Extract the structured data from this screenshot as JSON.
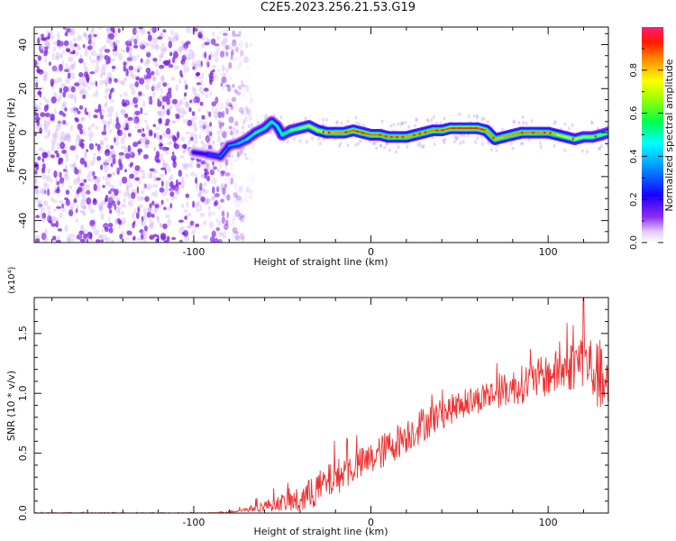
{
  "title": "C2E5.2023.256.21.53.G19",
  "colors": {
    "axis": "#111111",
    "scatter_dots": "#7a1fe6",
    "scatter_light": "#c9a3f5",
    "snr_line": "#ee3333"
  },
  "chart_data": [
    {
      "type": "heatmap",
      "title": "C2E5.2023.256.21.53.G19",
      "xlabel": "Height of straight line (km)",
      "ylabel": "Frequency (Hz)",
      "xlim": [
        -190,
        134
      ],
      "ylim": [
        -50,
        48
      ],
      "xticks": [
        -100,
        0,
        100
      ],
      "xtick_labels": [
        "-100",
        "0",
        "100"
      ],
      "yticks": [
        -40,
        -20,
        0,
        20,
        40
      ],
      "ytick_labels": [
        "-40",
        "-20",
        "0",
        "20",
        "40"
      ],
      "colorbar": {
        "label": "Normalized spectral amplitude",
        "range": [
          0,
          1
        ],
        "ticks": [
          0.0,
          0.2,
          0.4,
          0.6,
          0.8
        ],
        "tick_labels": [
          "0.0",
          "0.2",
          "0.4",
          "0.6",
          "0.8"
        ],
        "colormap": "rainbow"
      },
      "noise_region_x": [
        -190,
        -77
      ],
      "ridge": {
        "x": [
          -100,
          -92,
          -85,
          -80,
          -75,
          -70,
          -65,
          -60,
          -56,
          -53,
          -50,
          -45,
          -40,
          -35,
          -30,
          -25,
          -20,
          -15,
          -10,
          -5,
          0,
          5,
          10,
          15,
          20,
          25,
          30,
          35,
          40,
          45,
          50,
          55,
          60,
          65,
          70,
          75,
          80,
          85,
          90,
          95,
          100,
          105,
          110,
          115,
          120,
          125,
          130,
          134
        ],
        "y": [
          -9,
          -10,
          -11,
          -6,
          -5,
          -3,
          0,
          2,
          5,
          3,
          -1,
          1,
          2,
          3,
          1,
          0,
          0,
          0,
          1,
          0,
          -1,
          -1,
          -2,
          -2,
          -2,
          -1,
          0,
          1,
          1,
          2,
          2,
          2,
          2,
          1,
          -3,
          -2,
          -1,
          0,
          0,
          0,
          0,
          -1,
          -2,
          -3,
          -2,
          -2,
          -1,
          0
        ],
        "amplitude": [
          0.2,
          0.25,
          0.3,
          0.35,
          0.4,
          0.45,
          0.5,
          0.55,
          0.5,
          0.45,
          0.55,
          0.6,
          0.65,
          0.7,
          0.75,
          0.8,
          0.85,
          0.85,
          0.9,
          0.9,
          0.88,
          0.87,
          0.86,
          0.85,
          0.84,
          0.84,
          0.85,
          0.86,
          0.88,
          0.9,
          0.92,
          0.93,
          0.92,
          0.88,
          0.8,
          0.82,
          0.85,
          0.86,
          0.87,
          0.86,
          0.84,
          0.8,
          0.75,
          0.7,
          0.68,
          0.66,
          0.64,
          0.62
        ]
      }
    },
    {
      "type": "line",
      "xlabel": "Height of straight line (km)",
      "ylabel": "SNR (10 * v/v)",
      "multiplier_label": "(x10⁴)",
      "xlim": [
        -190,
        134
      ],
      "ylim": [
        0,
        1.8
      ],
      "xticks": [
        -100,
        0,
        100
      ],
      "xtick_labels": [
        "-100",
        "0",
        "100"
      ],
      "yticks": [
        0.0,
        0.5,
        1.0,
        1.5
      ],
      "ytick_labels": [
        "0.0",
        "0.5",
        "1.0",
        "1.5"
      ],
      "series": [
        {
          "x": [
            -190,
            -170,
            -150,
            -130,
            -110,
            -90,
            -80,
            -70,
            -60,
            -50,
            -40,
            -30,
            -20,
            -10,
            0,
            10,
            20,
            30,
            40,
            50,
            60,
            70,
            80,
            90,
            100,
            110,
            120,
            125,
            130,
            134
          ],
          "y": [
            0.0,
            0.0,
            0.0,
            0.0,
            0.0,
            0.0,
            0.01,
            0.03,
            0.06,
            0.09,
            0.1,
            0.2,
            0.3,
            0.38,
            0.45,
            0.55,
            0.65,
            0.75,
            0.83,
            0.9,
            0.95,
            1.0,
            1.05,
            1.1,
            1.15,
            1.2,
            1.3,
            1.2,
            1.1,
            1.0
          ],
          "noise": [
            0.004,
            0.004,
            0.004,
            0.004,
            0.004,
            0.004,
            0.01,
            0.02,
            0.05,
            0.07,
            0.12,
            0.15,
            0.15,
            0.14,
            0.14,
            0.15,
            0.15,
            0.15,
            0.13,
            0.12,
            0.12,
            0.13,
            0.15,
            0.17,
            0.18,
            0.2,
            0.25,
            0.28,
            0.28,
            0.25
          ],
          "peak": {
            "x": 120,
            "y": 1.8
          }
        }
      ]
    }
  ]
}
